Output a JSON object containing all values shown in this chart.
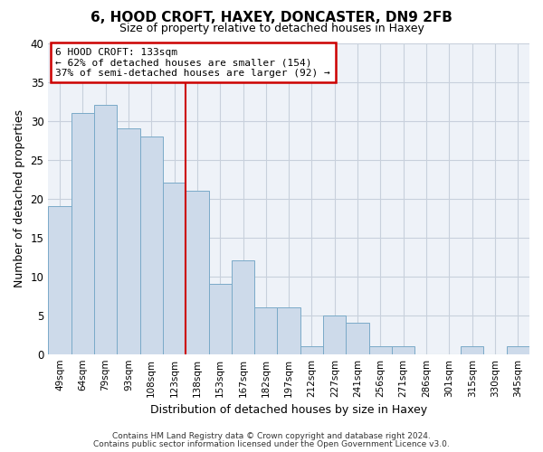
{
  "title": "6, HOOD CROFT, HAXEY, DONCASTER, DN9 2FB",
  "subtitle": "Size of property relative to detached houses in Haxey",
  "xlabel": "Distribution of detached houses by size in Haxey",
  "ylabel": "Number of detached properties",
  "bar_color": "#cddaea",
  "bar_edge_color": "#7aaac8",
  "categories": [
    "49sqm",
    "64sqm",
    "79sqm",
    "93sqm",
    "108sqm",
    "123sqm",
    "138sqm",
    "153sqm",
    "167sqm",
    "182sqm",
    "197sqm",
    "212sqm",
    "227sqm",
    "241sqm",
    "256sqm",
    "271sqm",
    "286sqm",
    "301sqm",
    "315sqm",
    "330sqm",
    "345sqm"
  ],
  "values": [
    19,
    31,
    32,
    29,
    28,
    22,
    21,
    9,
    12,
    6,
    6,
    1,
    5,
    4,
    1,
    1,
    0,
    0,
    1,
    0,
    1
  ],
  "ylim": [
    0,
    40
  ],
  "yticks": [
    0,
    5,
    10,
    15,
    20,
    25,
    30,
    35,
    40
  ],
  "vline_index": 5.5,
  "vline_color": "#cc0000",
  "annotation_title": "6 HOOD CROFT: 133sqm",
  "annotation_line1": "← 62% of detached houses are smaller (154)",
  "annotation_line2": "37% of semi-detached houses are larger (92) →",
  "annotation_box_color": "#ffffff",
  "annotation_box_edge": "#cc0000",
  "footer1": "Contains HM Land Registry data © Crown copyright and database right 2024.",
  "footer2": "Contains public sector information licensed under the Open Government Licence v3.0.",
  "bg_color": "#ffffff",
  "plot_bg_color": "#eef2f8",
  "grid_color": "#c8d0dc"
}
